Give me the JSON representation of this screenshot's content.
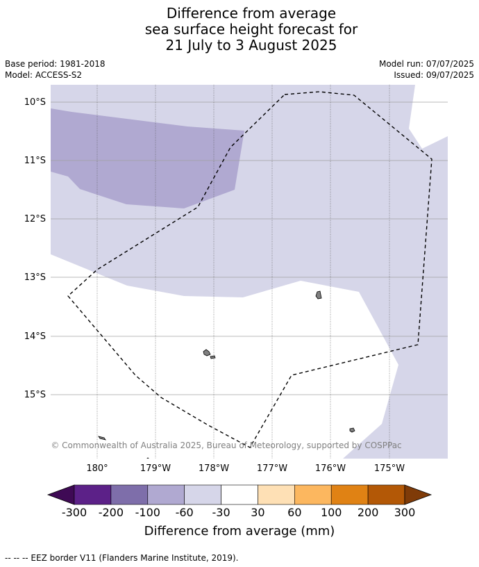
{
  "title_lines": [
    "Difference from average",
    "sea surface height forecast for",
    "21 July to 3 August 2025"
  ],
  "meta_left": [
    "Base period: 1981-2018",
    "Model: ACCESS-S2"
  ],
  "meta_right": [
    "Model run: 07/07/2025",
    "Issued: 09/07/2025"
  ],
  "map": {
    "lat_labels": [
      "10°S",
      "11°S",
      "12°S",
      "13°S",
      "14°S",
      "15°S"
    ],
    "lon_labels": [
      "180°",
      "179°W",
      "178°W",
      "177°W",
      "176°W",
      "175°W"
    ],
    "credit": "© Commonwealth of Australia 2025, Bureau of Meteorology, supported by COSPPac",
    "fill_colors": {
      "-100_-60": "#b0a9d1",
      "-60_-30": "#d6d6e9",
      "land": "#808080"
    }
  },
  "colorbar": {
    "ticks": [
      "-300",
      "-200",
      "-100",
      "-60",
      "-30",
      "30",
      "60",
      "100",
      "200",
      "300"
    ],
    "colors": [
      "#3f0a55",
      "#5c2188",
      "#7e6eaa",
      "#b0a9d1",
      "#d6d6e9",
      "#ffffff",
      "#fee0b5",
      "#fcb75f",
      "#e08214",
      "#b35806",
      "#7f3b08"
    ],
    "title": "Difference from average (mm)"
  },
  "footnote": "--  --  -- EEZ border V11 (Flanders Marine Institute, 2019)."
}
